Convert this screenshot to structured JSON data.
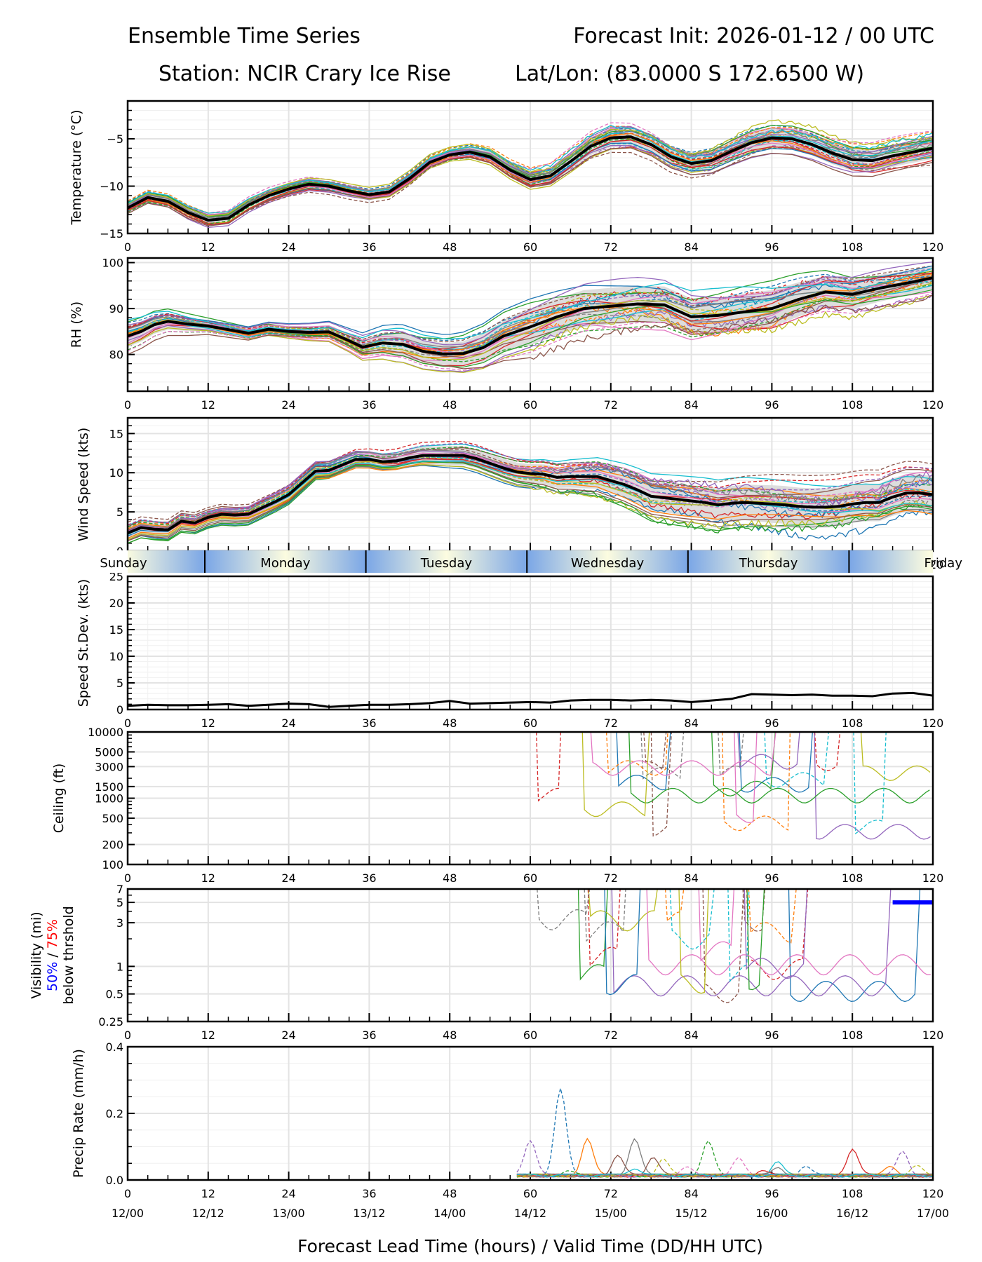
{
  "header": {
    "title_left": "Ensemble Time Series",
    "title_right": "Forecast Init: 2026-01-12 / 00 UTC",
    "station": "Station: NCIR Crary Ice Rise",
    "latlon": "Lat/Lon: (83.0000 S 172.6500 W)"
  },
  "chart_data": {
    "type": "line",
    "title": "Ensemble Time Series",
    "xlabel": "Forecast Lead Time (hours) / Valid Time (DD/HH UTC)",
    "xlim": [
      0,
      120
    ],
    "x_ticks": [
      0,
      12,
      24,
      36,
      48,
      60,
      72,
      84,
      96,
      108,
      120
    ],
    "valid_time_labels": [
      "12/00",
      "12/12",
      "13/00",
      "13/12",
      "14/00",
      "14/12",
      "15/00",
      "15/12",
      "16/00",
      "16/12",
      "17/00"
    ],
    "member_colors": [
      "#1f77b4",
      "#ff7f0e",
      "#2ca02c",
      "#d62728",
      "#9467bd",
      "#8c564b",
      "#e377c2",
      "#7f7f7f",
      "#bcbd22",
      "#17becf"
    ],
    "day_strip": {
      "days": [
        {
          "label": "Sunday",
          "start": -12,
          "end": 11.5
        },
        {
          "label": "Monday",
          "start": 11.5,
          "end": 35.5
        },
        {
          "label": "Tuesday",
          "start": 35.5,
          "end": 59.5
        },
        {
          "label": "Wednesday",
          "start": 59.5,
          "end": 83.5
        },
        {
          "label": "Thursday",
          "start": 83.5,
          "end": 107.5
        },
        {
          "label": "Friday",
          "start": 107.5,
          "end": 131.5
        }
      ],
      "day_color": "#fcfce0",
      "night_color": "#7aa6e6"
    },
    "panels": [
      {
        "id": "temperature",
        "ylabel": "Temperature (°C)",
        "scale": "linear",
        "ylim": [
          -15,
          -1
        ],
        "y_ticks": [
          -15,
          -10,
          -5
        ],
        "y_tick_labels": [
          "−15",
          "−10",
          "−5"
        ],
        "minor_step": 1,
        "members": 30,
        "member_spread": [
          [
            0,
            0.6
          ],
          [
            12,
            0.7
          ],
          [
            24,
            0.6
          ],
          [
            36,
            0.6
          ],
          [
            48,
            0.7
          ],
          [
            60,
            1.0
          ],
          [
            72,
            1.2
          ],
          [
            84,
            1.1
          ],
          [
            96,
            1.4
          ],
          [
            108,
            1.5
          ],
          [
            120,
            1.4
          ]
        ],
        "mean": [
          [
            0,
            -12.3
          ],
          [
            3,
            -11.2
          ],
          [
            6,
            -11.6
          ],
          [
            9,
            -12.8
          ],
          [
            12,
            -13.6
          ],
          [
            15,
            -13.4
          ],
          [
            18,
            -12.0
          ],
          [
            21,
            -11.0
          ],
          [
            24,
            -10.3
          ],
          [
            27,
            -9.8
          ],
          [
            30,
            -10.0
          ],
          [
            33,
            -10.5
          ],
          [
            36,
            -10.9
          ],
          [
            39,
            -10.6
          ],
          [
            42,
            -9.2
          ],
          [
            45,
            -7.5
          ],
          [
            48,
            -6.7
          ],
          [
            51,
            -6.4
          ],
          [
            54,
            -6.9
          ],
          [
            57,
            -8.3
          ],
          [
            60,
            -9.3
          ],
          [
            63,
            -8.9
          ],
          [
            66,
            -7.4
          ],
          [
            69,
            -5.8
          ],
          [
            72,
            -4.9
          ],
          [
            75,
            -4.8
          ],
          [
            78,
            -5.6
          ],
          [
            81,
            -6.9
          ],
          [
            84,
            -7.6
          ],
          [
            87,
            -7.3
          ],
          [
            90,
            -6.3
          ],
          [
            93,
            -5.4
          ],
          [
            96,
            -4.9
          ],
          [
            99,
            -5.0
          ],
          [
            102,
            -5.6
          ],
          [
            105,
            -6.5
          ],
          [
            108,
            -7.2
          ],
          [
            111,
            -7.3
          ],
          [
            114,
            -6.8
          ],
          [
            117,
            -6.4
          ],
          [
            120,
            -6.0
          ]
        ],
        "mean_color": "#000000"
      },
      {
        "id": "rh",
        "ylabel": "RH (%)",
        "scale": "linear",
        "ylim": [
          72,
          101
        ],
        "y_ticks": [
          80,
          90,
          100
        ],
        "y_tick_labels": [
          "80",
          "90",
          "100"
        ],
        "minor_step": 2,
        "members": 30,
        "member_spread": [
          [
            0,
            3
          ],
          [
            12,
            1.5
          ],
          [
            24,
            1.5
          ],
          [
            33,
            2
          ],
          [
            40,
            3
          ],
          [
            48,
            3
          ],
          [
            60,
            5
          ],
          [
            72,
            5
          ],
          [
            84,
            5
          ],
          [
            96,
            5
          ],
          [
            108,
            4
          ],
          [
            120,
            3
          ]
        ],
        "mean": [
          [
            0,
            84
          ],
          [
            2,
            85
          ],
          [
            4,
            86.5
          ],
          [
            6,
            87.2
          ],
          [
            9,
            86.6
          ],
          [
            12,
            86.2
          ],
          [
            15,
            85.4
          ],
          [
            18,
            84.6
          ],
          [
            21,
            85.5
          ],
          [
            24,
            85.0
          ],
          [
            27,
            84.8
          ],
          [
            30,
            84.9
          ],
          [
            33,
            83.0
          ],
          [
            35,
            81.6
          ],
          [
            38,
            82.5
          ],
          [
            41,
            82.2
          ],
          [
            44,
            80.7
          ],
          [
            47,
            80.1
          ],
          [
            50,
            80.2
          ],
          [
            53,
            81.5
          ],
          [
            56,
            84.0
          ],
          [
            60,
            86.0
          ],
          [
            64,
            88.2
          ],
          [
            68,
            90.0
          ],
          [
            72,
            90.5
          ],
          [
            76,
            91.0
          ],
          [
            80,
            90.8
          ],
          [
            84,
            88.2
          ],
          [
            88,
            88.5
          ],
          [
            92,
            89.3
          ],
          [
            96,
            90.0
          ],
          [
            100,
            92.0
          ],
          [
            104,
            93.6
          ],
          [
            108,
            93.1
          ],
          [
            112,
            94.4
          ],
          [
            116,
            95.5
          ],
          [
            120,
            96.7
          ]
        ],
        "mean_color": "#000000"
      },
      {
        "id": "wind_speed",
        "ylabel": "Wind Speed (kts)",
        "scale": "linear",
        "ylim": [
          0,
          17
        ],
        "y_ticks": [
          0,
          5,
          10,
          15
        ],
        "y_tick_labels": [
          "0",
          "5",
          "10",
          "15"
        ],
        "minor_step": 1,
        "members": 30,
        "member_spread": [
          [
            0,
            1.0
          ],
          [
            12,
            1.0
          ],
          [
            24,
            1.2
          ],
          [
            36,
            1.3
          ],
          [
            48,
            1.5
          ],
          [
            60,
            1.5
          ],
          [
            72,
            2.0
          ],
          [
            84,
            2.5
          ],
          [
            96,
            3.0
          ],
          [
            108,
            3.0
          ],
          [
            120,
            3.0
          ]
        ],
        "mean": [
          [
            0,
            2.3
          ],
          [
            2,
            3.0
          ],
          [
            4,
            2.8
          ],
          [
            6,
            2.7
          ],
          [
            8,
            3.8
          ],
          [
            10,
            3.6
          ],
          [
            12,
            4.3
          ],
          [
            14,
            4.7
          ],
          [
            16,
            4.6
          ],
          [
            18,
            4.7
          ],
          [
            20,
            5.5
          ],
          [
            22,
            6.3
          ],
          [
            24,
            7.2
          ],
          [
            26,
            8.7
          ],
          [
            28,
            10.2
          ],
          [
            30,
            10.3
          ],
          [
            32,
            11.0
          ],
          [
            34,
            11.7
          ],
          [
            36,
            11.7
          ],
          [
            38,
            11.4
          ],
          [
            40,
            11.5
          ],
          [
            42,
            11.9
          ],
          [
            44,
            12.2
          ],
          [
            46,
            12.2
          ],
          [
            48,
            12.2
          ],
          [
            50,
            12.2
          ],
          [
            52,
            11.8
          ],
          [
            54,
            11.2
          ],
          [
            56,
            10.6
          ],
          [
            58,
            10.1
          ],
          [
            60,
            9.9
          ],
          [
            62,
            9.8
          ],
          [
            64,
            9.4
          ],
          [
            66,
            9.5
          ],
          [
            68,
            9.5
          ],
          [
            70,
            9.5
          ],
          [
            72,
            9.0
          ],
          [
            74,
            8.5
          ],
          [
            76,
            7.8
          ],
          [
            78,
            7.0
          ],
          [
            80,
            6.8
          ],
          [
            82,
            6.6
          ],
          [
            84,
            6.4
          ],
          [
            86,
            6.2
          ],
          [
            88,
            5.9
          ],
          [
            90,
            6.1
          ],
          [
            92,
            6.2
          ],
          [
            94,
            6.1
          ],
          [
            96,
            6.0
          ],
          [
            98,
            5.9
          ],
          [
            100,
            5.7
          ],
          [
            102,
            5.6
          ],
          [
            104,
            5.6
          ],
          [
            106,
            5.7
          ],
          [
            108,
            6.0
          ],
          [
            110,
            6.2
          ],
          [
            112,
            6.2
          ],
          [
            114,
            6.9
          ],
          [
            116,
            7.4
          ],
          [
            118,
            7.4
          ],
          [
            120,
            7.2
          ]
        ],
        "mean_color": "#000000"
      },
      {
        "id": "speed_stdev",
        "ylabel": "Speed St.Dev. (kts)",
        "scale": "linear",
        "ylim": [
          0,
          25
        ],
        "y_ticks": [
          0,
          5,
          10,
          15,
          20,
          25
        ],
        "y_tick_labels": [
          "0",
          "5",
          "10",
          "15",
          "20",
          "25"
        ],
        "minor_step": 1,
        "members": 0,
        "series": [
          [
            0,
            0.7
          ],
          [
            3,
            0.9
          ],
          [
            6,
            0.8
          ],
          [
            9,
            0.8
          ],
          [
            12,
            0.9
          ],
          [
            15,
            1.0
          ],
          [
            18,
            0.7
          ],
          [
            21,
            0.9
          ],
          [
            24,
            1.1
          ],
          [
            27,
            1.0
          ],
          [
            30,
            0.5
          ],
          [
            33,
            0.7
          ],
          [
            36,
            0.9
          ],
          [
            39,
            0.9
          ],
          [
            42,
            1.0
          ],
          [
            45,
            1.2
          ],
          [
            48,
            1.6
          ],
          [
            51,
            1.1
          ],
          [
            54,
            1.2
          ],
          [
            57,
            1.3
          ],
          [
            60,
            1.4
          ],
          [
            63,
            1.3
          ],
          [
            66,
            1.7
          ],
          [
            69,
            1.8
          ],
          [
            72,
            1.8
          ],
          [
            75,
            1.7
          ],
          [
            78,
            1.8
          ],
          [
            81,
            1.7
          ],
          [
            84,
            1.4
          ],
          [
            87,
            1.7
          ],
          [
            90,
            2.0
          ],
          [
            93,
            2.9
          ],
          [
            96,
            2.8
          ],
          [
            99,
            2.7
          ],
          [
            102,
            2.8
          ],
          [
            105,
            2.6
          ],
          [
            108,
            2.6
          ],
          [
            111,
            2.5
          ],
          [
            114,
            3.0
          ],
          [
            117,
            3.1
          ],
          [
            120,
            2.6
          ]
        ],
        "mean_color": "#000000"
      },
      {
        "id": "ceiling",
        "ylabel": "Ceiling (ft)",
        "scale": "log",
        "ylim": [
          100,
          10000
        ],
        "y_ticks": [
          100,
          200,
          500,
          1000,
          1500,
          3000,
          5000,
          10000
        ],
        "y_tick_labels": [
          "100",
          "200",
          "500",
          "1000",
          "1500",
          "3000",
          "5000",
          "10000"
        ],
        "members_start_hour": 59,
        "members": 20
      },
      {
        "id": "visibility",
        "ylabel": "Visibility (mi)",
        "ylabel_line2_part1": "50%",
        "ylabel_line2_sep": " / ",
        "ylabel_line2_part2": "75%",
        "ylabel_line3": "below thrshold",
        "color_50": "#0000ff",
        "color_75": "#ff0000",
        "scale": "log",
        "ylim": [
          0.25,
          7
        ],
        "y_ticks": [
          0.25,
          0.5,
          1,
          3,
          5,
          7
        ],
        "y_tick_labels": [
          "0.25",
          "0.5",
          "1",
          "3",
          "5",
          "7"
        ],
        "members_start_hour": 59,
        "members": 20,
        "threshold_50": [
          [
            114,
            5
          ],
          [
            120,
            5
          ]
        ]
      },
      {
        "id": "precip",
        "ylabel": "Precip Rate (mm/h)",
        "scale": "linear",
        "ylim": [
          0,
          0.4
        ],
        "y_ticks": [
          0.0,
          0.2,
          0.4
        ],
        "y_tick_labels": [
          "0.0",
          "0.2",
          "0.4"
        ],
        "minor_step": 0.05,
        "members_start_hour": 58,
        "members": 20,
        "peaks": [
          [
            64.5,
            0.26
          ],
          [
            68.5,
            0.11
          ],
          [
            86.5,
            0.1
          ],
          [
            108,
            0.08
          ],
          [
            115.5,
            0.07
          ],
          [
            73,
            0.06
          ],
          [
            91,
            0.05
          ]
        ]
      }
    ]
  }
}
